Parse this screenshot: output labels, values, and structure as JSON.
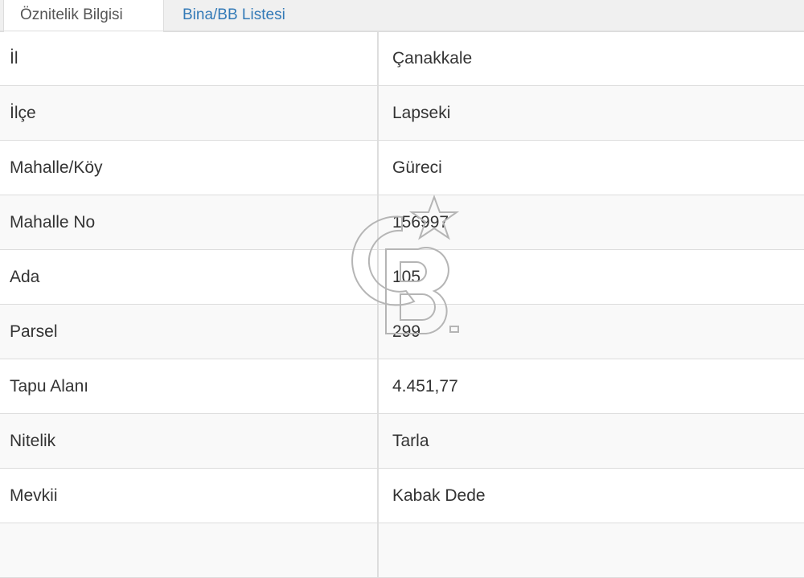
{
  "tabs": [
    {
      "label": "Öznitelik Bilgisi",
      "active": true
    },
    {
      "label": "Bina/BB Listesi",
      "active": false
    }
  ],
  "rows": [
    {
      "key": "İl",
      "value": "Çanakkale"
    },
    {
      "key": "İlçe",
      "value": "Lapseki"
    },
    {
      "key": "Mahalle/Köy",
      "value": "Güreci"
    },
    {
      "key": "Mahalle No",
      "value": "156997"
    },
    {
      "key": "Ada",
      "value": "105"
    },
    {
      "key": "Parsel",
      "value": "299"
    },
    {
      "key": "Tapu Alanı",
      "value": "4.451,77"
    },
    {
      "key": "Nitelik",
      "value": "Tarla"
    },
    {
      "key": "Mevkii",
      "value": "Kabak Dede"
    },
    {
      "key": "",
      "value": ""
    }
  ],
  "watermark": {
    "logo": "CB star logo",
    "color": "#b0b0b0"
  }
}
